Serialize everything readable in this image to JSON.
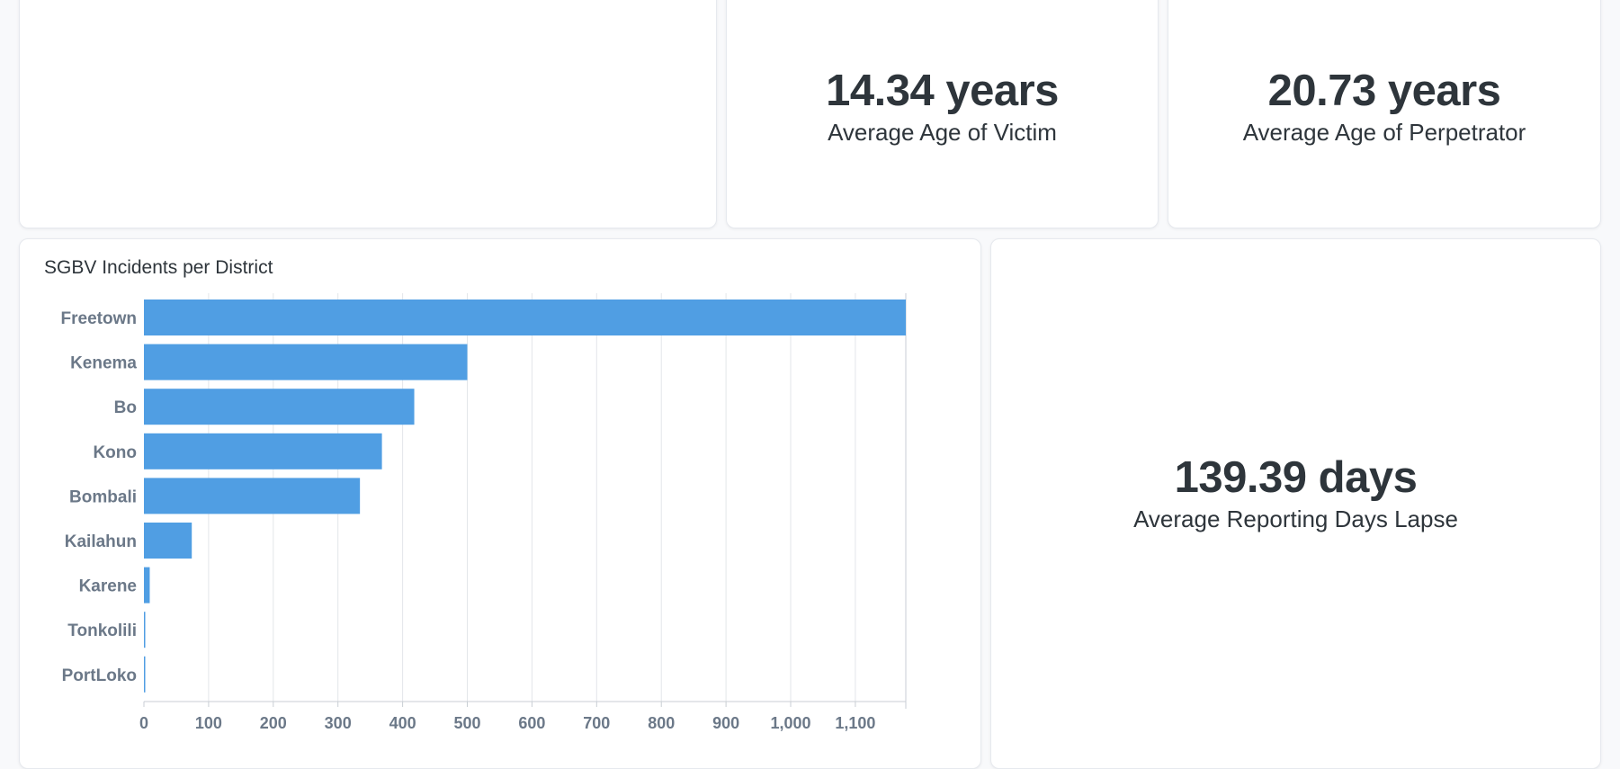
{
  "cards": {
    "victim": {
      "value": "14.34 years",
      "label": "Average Age of Victim"
    },
    "perpetrator": {
      "value": "20.73 years",
      "label": "Average Age of Perpetrator"
    },
    "lapse": {
      "value": "139.39 days",
      "label": "Average Reporting Days Lapse"
    }
  },
  "chart_data": {
    "type": "bar",
    "orientation": "horizontal",
    "title": "SGBV Incidents per District",
    "xlabel": "",
    "ylabel": "",
    "categories": [
      "Freetown",
      "Kenema",
      "Bo",
      "Kono",
      "Bombali",
      "Kailahun",
      "Karene",
      "Tonkolili",
      "PortLoko"
    ],
    "values": [
      1178,
      500,
      418,
      368,
      334,
      74,
      9,
      2,
      1
    ],
    "xlim": [
      0,
      1178
    ],
    "ticks": [
      0,
      100,
      200,
      300,
      400,
      500,
      600,
      700,
      800,
      900,
      1000,
      1100
    ],
    "tick_labels": [
      "0",
      "100",
      "200",
      "300",
      "400",
      "500",
      "600",
      "700",
      "800",
      "900",
      "1,000",
      "1,100"
    ],
    "grid": true,
    "bar_color": "#509ee3",
    "grid_color": "#e3e6ea",
    "label_color": "#6b7888"
  }
}
